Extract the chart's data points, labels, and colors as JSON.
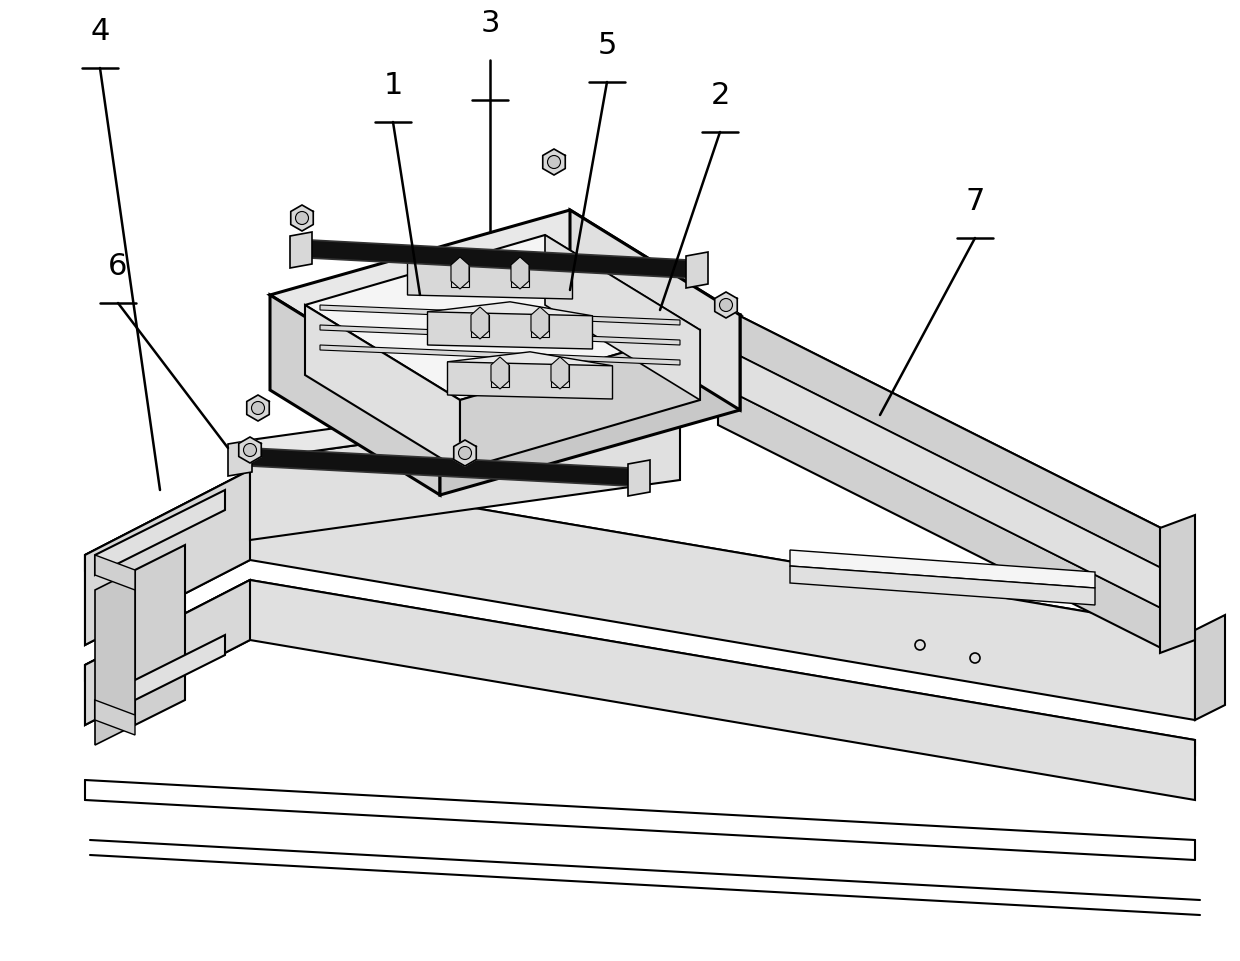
{
  "bg_color": "#ffffff",
  "lc": "#000000",
  "figsize": [
    12.4,
    9.61
  ],
  "dpi": 100,
  "label_fontsize": 22,
  "lw_main": 1.8,
  "lw_thick": 2.2,
  "colors": {
    "white": "#ffffff",
    "very_light": "#f5f5f5",
    "light1": "#efefef",
    "light2": "#e8e8e8",
    "light3": "#e0e0e0",
    "mid1": "#d8d8d8",
    "mid2": "#d0d0d0",
    "mid3": "#c8c8c8",
    "dark1": "#b8b8b8",
    "dark2": "#a8a8a8",
    "black": "#111111",
    "black2": "#222222",
    "black3": "#333333"
  }
}
